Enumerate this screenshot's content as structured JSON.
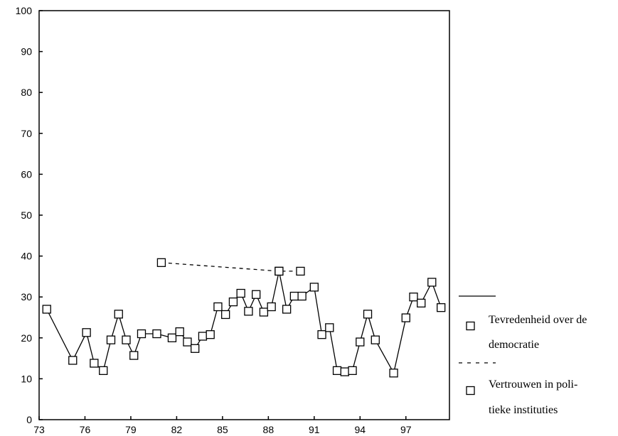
{
  "chart_data": {
    "type": "line",
    "title": "",
    "xlabel": "",
    "ylabel": "",
    "xlim": [
      73,
      99.85
    ],
    "ylim": [
      0,
      100
    ],
    "x_ticks": [
      "73",
      "76",
      "79",
      "82",
      "85",
      "88",
      "91",
      "94",
      "97"
    ],
    "y_ticks": [
      "0",
      "10",
      "20",
      "30",
      "40",
      "50",
      "60",
      "70",
      "80",
      "90",
      "100"
    ],
    "grid": false,
    "legend_position": "right",
    "series": [
      {
        "name": "Tevredenheid over de democratie",
        "line_style": "solid",
        "marker": "square",
        "x": [
          73.5,
          75.2,
          76.1,
          76.6,
          77.2,
          77.7,
          78.2,
          78.7,
          79.2,
          79.7,
          80.7,
          81.7,
          82.2,
          82.7,
          83.2,
          83.7,
          84.2,
          84.7,
          85.2,
          85.7,
          86.2,
          86.7,
          87.2,
          87.7,
          88.2,
          88.7,
          89.2,
          89.7,
          90.2,
          91.0,
          91.5,
          92.0,
          92.5,
          93.0,
          93.5,
          94.0,
          94.5,
          95.0,
          96.2,
          97.0,
          97.5,
          98.0,
          98.7,
          99.3
        ],
        "y": [
          27.0,
          14.5,
          21.3,
          13.8,
          12.0,
          19.5,
          25.8,
          19.5,
          15.7,
          21.0,
          21.0,
          20.0,
          21.5,
          19.0,
          17.4,
          20.4,
          20.8,
          27.6,
          25.7,
          28.8,
          30.9,
          26.5,
          30.6,
          26.3,
          27.6,
          36.3,
          27.0,
          30.2,
          30.2,
          32.4,
          20.8,
          22.5,
          12.0,
          11.7,
          12.0,
          19.0,
          25.8,
          19.5,
          11.4,
          24.9,
          30.0,
          28.5,
          33.6,
          27.4
        ]
      },
      {
        "name": "Vertrouwen in politieke instituties",
        "line_style": "dashed",
        "marker": "square",
        "x": [
          81.0,
          88.7,
          90.1
        ],
        "y": [
          38.4,
          36.3,
          36.3
        ]
      }
    ],
    "legend": [
      {
        "lines": [
          "Tevredenheid over de",
          "democratie"
        ],
        "line_style": "solid"
      },
      {
        "lines": [
          "Vertrouwen in poli-",
          "tieke instituties"
        ],
        "line_style": "dashed"
      }
    ]
  }
}
